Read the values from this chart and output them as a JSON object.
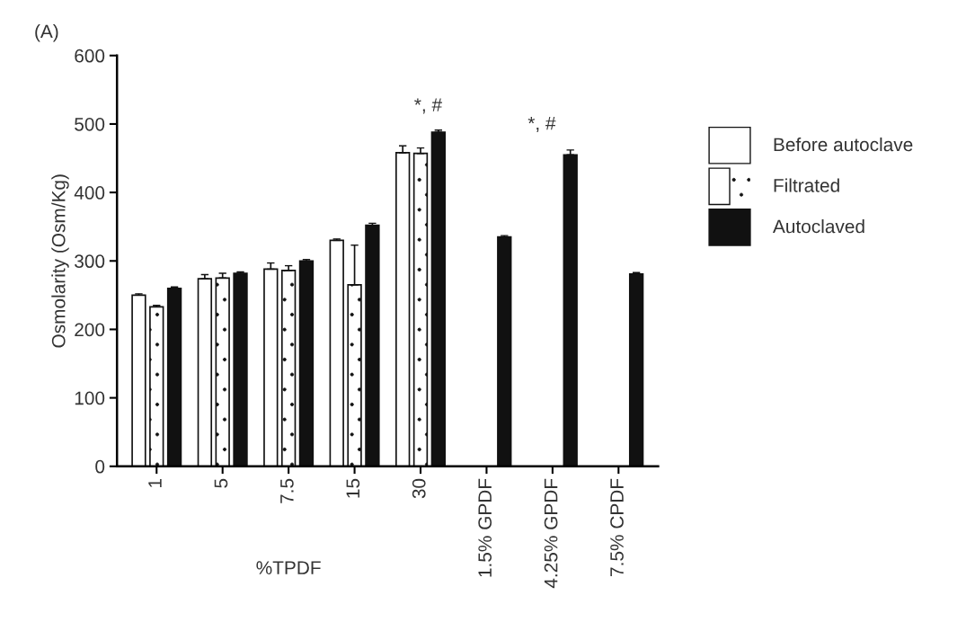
{
  "chart_data": {
    "type": "bar",
    "categories": [
      "1",
      "5",
      "7.5",
      "15",
      "30",
      "1.5% GPDF",
      "4.25% GPDF",
      "7.5% CPDF"
    ],
    "series": [
      {
        "name": "Before autoclave",
        "color": "#ffffff",
        "values": [
          250,
          274,
          288,
          330,
          458,
          null,
          null,
          null
        ],
        "errors": [
          [
            250,
            252
          ],
          [
            274,
            280
          ],
          [
            288,
            297
          ],
          [
            330,
            332
          ],
          [
            458,
            468
          ],
          null,
          null,
          null
        ]
      },
      {
        "name": "Filtrated",
        "color": "#ffffff",
        "values": [
          233,
          275,
          286,
          265,
          457,
          null,
          null,
          null
        ],
        "errors": [
          [
            233,
            235
          ],
          [
            275,
            282
          ],
          [
            286,
            293
          ],
          [
            265,
            323
          ],
          [
            457,
            465
          ],
          null,
          null,
          null
        ]
      },
      {
        "name": "Autoclaved",
        "color": "#111111",
        "values": [
          260,
          282,
          300,
          352,
          488,
          335,
          455,
          281
        ],
        "errors": [
          [
            260,
            262
          ],
          [
            282,
            284
          ],
          [
            300,
            302
          ],
          [
            352,
            355
          ],
          [
            488,
            491
          ],
          [
            335,
            337
          ],
          [
            455,
            462
          ],
          [
            281,
            283
          ]
        ]
      }
    ],
    "ylabel": "Osmolarity (Osm/Kg)",
    "ylim": [
      0,
      600
    ],
    "yticks": [
      0,
      100,
      200,
      300,
      400,
      500,
      600
    ],
    "annotations": [
      "(A)",
      "%TPDF",
      "*, #",
      "*, #"
    ],
    "legend": "right",
    "grid": false
  }
}
